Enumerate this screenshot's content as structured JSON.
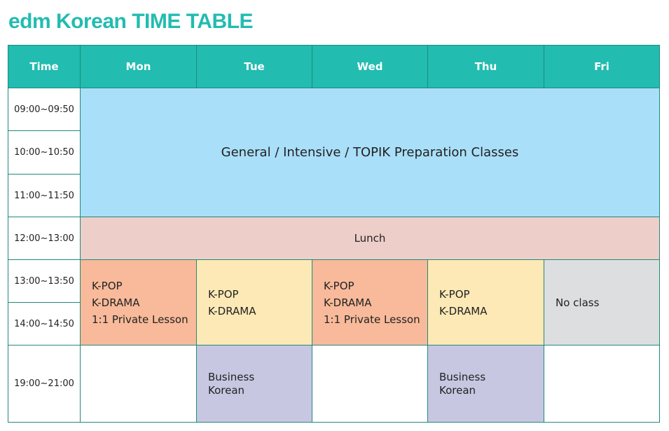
{
  "title": "edm Korean TIME TABLE",
  "headers": [
    "Time",
    "Mon",
    "Tue",
    "Wed",
    "Thu",
    "Fri"
  ],
  "times": [
    "09:00~09:50",
    "10:00~10:50",
    "11:00~11:50",
    "12:00~13:00",
    "13:00~13:50",
    "14:00~14:50",
    "19:00~21:00"
  ],
  "morning": "General / Intensive / TOPIK Preparation Classes",
  "lunch": "Lunch",
  "afternoon": {
    "mon": [
      "K-POP",
      "K-DRAMA",
      "1:1 Private Lesson"
    ],
    "tue": [
      "K-POP",
      "K-DRAMA"
    ],
    "wed": [
      "K-POP",
      "K-DRAMA",
      "1:1 Private Lesson"
    ],
    "thu": [
      "K-POP",
      "K-DRAMA"
    ],
    "fri": [
      "No class"
    ]
  },
  "evening": {
    "tue": [
      "Business",
      "Korean"
    ],
    "thu": [
      "Business",
      "Korean"
    ]
  },
  "colors": {
    "accent": "#22bcb0",
    "morning": "#aadff9",
    "lunch": "#edcec9",
    "private": "#f8ba9a",
    "kpop": "#fde9b6",
    "noclass": "#dddedf",
    "business": "#c7c7e2"
  }
}
